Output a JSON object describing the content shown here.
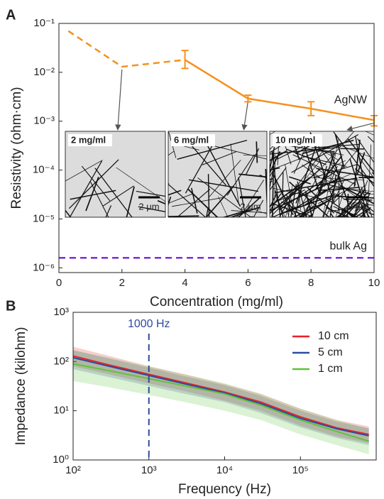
{
  "chart_data": [
    {
      "type": "line",
      "panel": "A",
      "x_label": "Concentration (mg/ml)",
      "y_label": "Resistivity (ohm·cm)",
      "log_y": true,
      "xlim": [
        0,
        10
      ],
      "ylim": [
        8e-07,
        0.1
      ],
      "xticks": [
        0,
        2,
        4,
        6,
        8,
        10
      ],
      "yticks": [
        {
          "value": 1e-06,
          "label": "10⁻⁶"
        },
        {
          "value": 1e-05,
          "label": "10⁻⁵"
        },
        {
          "value": 0.0001,
          "label": "10⁻⁴"
        },
        {
          "value": 0.001,
          "label": "10⁻³"
        },
        {
          "value": 0.01,
          "label": "10⁻²"
        },
        {
          "value": 0.1,
          "label": "10⁻¹"
        }
      ],
      "series": [
        {
          "name": "AgNW",
          "color": "#f5901e",
          "dashed_x_max": 4,
          "x": [
            0.3,
            2,
            4,
            6,
            8,
            10
          ],
          "values": [
            0.07,
            0.013,
            0.018,
            0.0029,
            0.0018,
            0.00105
          ],
          "err_lower": [
            null,
            null,
            0.012,
            0.0025,
            0.0013,
            0.0008
          ],
          "err_upper": [
            null,
            null,
            0.028,
            0.0034,
            0.0025,
            0.0013
          ]
        }
      ],
      "reference_lines": [
        {
          "label": "bulk Ag",
          "value": 1.6e-06,
          "color": "#7a2be0"
        }
      ],
      "insets": [
        {
          "label": "2 mg/ml",
          "scale_bar": "2 μm"
        },
        {
          "label": "6 mg/ml",
          "scale_bar": "2 μm"
        },
        {
          "label": "10 mg/ml",
          "scale_bar": "2 μm"
        }
      ]
    },
    {
      "type": "band-line",
      "panel": "B",
      "x_label": "Frequency (Hz)",
      "y_label": "Impedance (kilohm)",
      "log_x": true,
      "log_y": true,
      "xlim": [
        100,
        1000000
      ],
      "ylim": [
        1,
        1000
      ],
      "xticks": [
        {
          "value": 100,
          "label": "10²"
        },
        {
          "value": 1000,
          "label": "10³"
        },
        {
          "value": 10000,
          "label": "10⁴"
        },
        {
          "value": 100000,
          "label": "10⁵"
        }
      ],
      "yticks": [
        {
          "value": 1,
          "label": "10⁰"
        },
        {
          "value": 10,
          "label": "10¹"
        },
        {
          "value": 100,
          "label": "10²"
        },
        {
          "value": 1000,
          "label": "10³"
        }
      ],
      "x": [
        100,
        300,
        1000,
        3000,
        10000,
        30000,
        100000,
        300000,
        800000
      ],
      "series": [
        {
          "name": "10 cm",
          "color": "#e8202a",
          "values": [
            130,
            85,
            55,
            37,
            24,
            15,
            7.5,
            4.5,
            3.3
          ],
          "band_low": [
            80,
            55,
            36,
            25,
            16,
            10,
            5,
            3,
            2.2
          ],
          "band_high": [
            200,
            130,
            80,
            55,
            35,
            22,
            11,
            6.5,
            4.8
          ]
        },
        {
          "name": "5 cm",
          "color": "#2b4da0",
          "values": [
            120,
            80,
            52,
            35,
            23,
            14,
            7,
            4.3,
            3.1
          ],
          "band_low": [
            70,
            48,
            32,
            22,
            15,
            9,
            4.6,
            2.8,
            2
          ],
          "band_high": [
            170,
            115,
            75,
            50,
            33,
            20,
            10,
            6,
            4.4
          ]
        },
        {
          "name": "1 cm",
          "color": "#5cc43a",
          "values": [
            90,
            65,
            45,
            32,
            22,
            13,
            6.5,
            3.8,
            2.4
          ],
          "band_low": [
            40,
            30,
            21,
            15,
            10,
            6.5,
            3.3,
            2,
            1.3
          ],
          "band_high": [
            170,
            120,
            80,
            55,
            36,
            22,
            11,
            6.5,
            4.3
          ]
        }
      ],
      "vlines": [
        {
          "value": 1000,
          "label": "1000 Hz",
          "color": "#2e4a9e"
        }
      ],
      "legend": "upper right"
    }
  ]
}
